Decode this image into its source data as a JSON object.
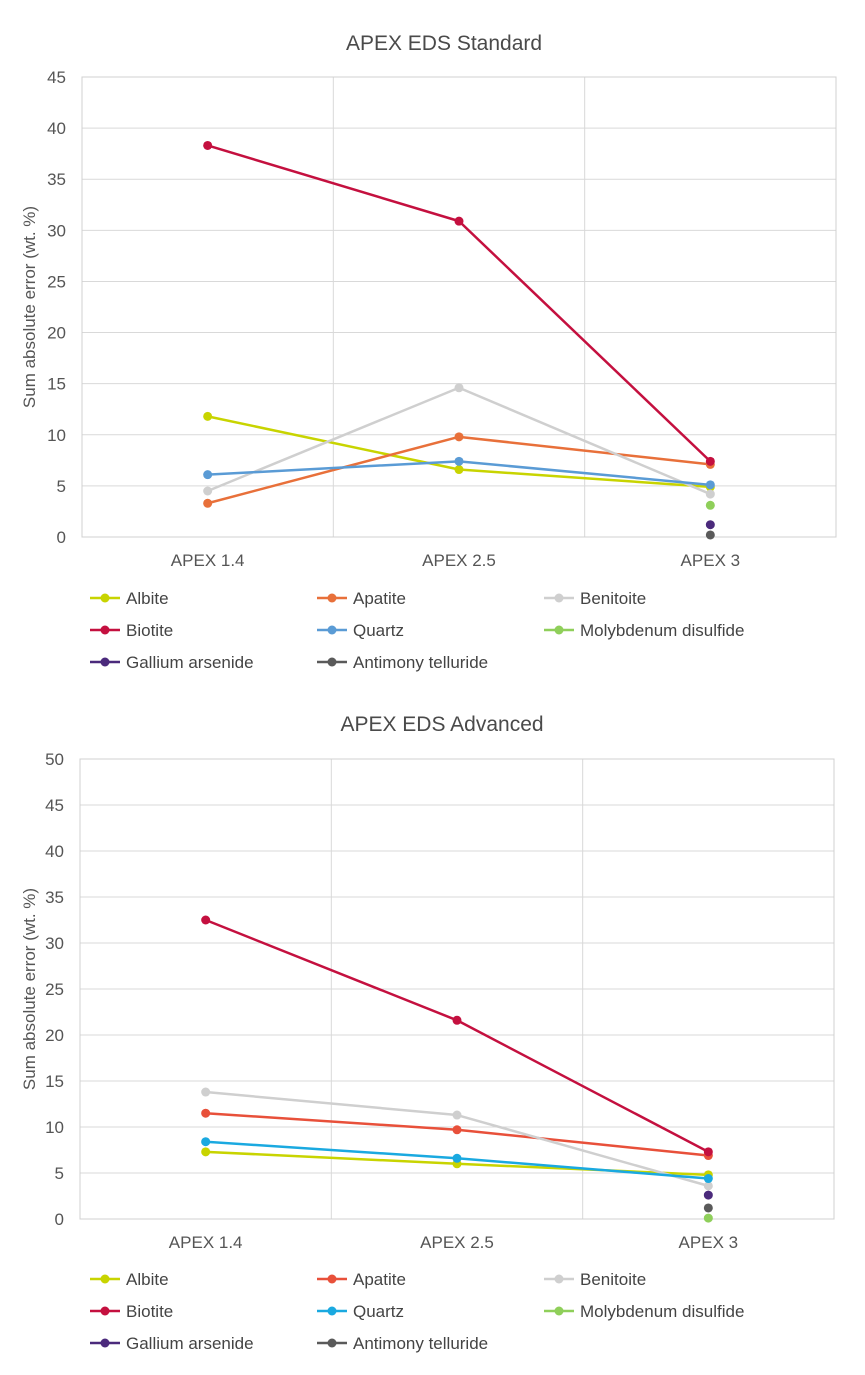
{
  "chart_data": [
    {
      "type": "line",
      "title": "APEX EDS Standard",
      "xlabel": "",
      "ylabel": "Sum absolute error (wt. %)",
      "categories": [
        "APEX 1.4",
        "APEX 2.5",
        "APEX 3"
      ],
      "ylim": [
        0,
        45
      ],
      "yticks": [
        0,
        5,
        10,
        15,
        20,
        25,
        30,
        35,
        40,
        45
      ],
      "grid": true,
      "legend_position": "bottom",
      "series": [
        {
          "name": "Albite",
          "color": "#c8d400",
          "values": [
            11.8,
            6.6,
            4.9
          ]
        },
        {
          "name": "Apatite",
          "color": "#e8703a",
          "values": [
            3.3,
            9.8,
            7.1
          ]
        },
        {
          "name": "Benitoite",
          "color": "#cfcfcf",
          "values": [
            4.5,
            14.6,
            4.2
          ]
        },
        {
          "name": "Biotite",
          "color": "#c4103f",
          "values": [
            38.3,
            30.9,
            7.4
          ]
        },
        {
          "name": "Quartz",
          "color": "#5a9bd5",
          "values": [
            6.1,
            7.4,
            5.1
          ]
        },
        {
          "name": "Molybdenum disulfide",
          "color": "#8fcf5a",
          "values": [
            null,
            null,
            3.1
          ]
        },
        {
          "name": "Gallium arsenide",
          "color": "#4b2a7c",
          "values": [
            null,
            null,
            1.2
          ]
        },
        {
          "name": "Antimony telluride",
          "color": "#5a5a5a",
          "values": [
            null,
            null,
            0.2
          ]
        }
      ]
    },
    {
      "type": "line",
      "title": "APEX EDS Advanced",
      "xlabel": "",
      "ylabel": "Sum absolute error (wt. %)",
      "categories": [
        "APEX 1.4",
        "APEX 2.5",
        "APEX 3"
      ],
      "ylim": [
        0,
        50
      ],
      "yticks": [
        0,
        5,
        10,
        15,
        20,
        25,
        30,
        35,
        40,
        45,
        50
      ],
      "grid": true,
      "legend_position": "bottom",
      "series": [
        {
          "name": "Albite",
          "color": "#c8d400",
          "values": [
            7.3,
            6.0,
            4.8
          ]
        },
        {
          "name": "Apatite",
          "color": "#e8503a",
          "values": [
            11.5,
            9.7,
            6.9
          ]
        },
        {
          "name": "Benitoite",
          "color": "#cfcfcf",
          "values": [
            13.8,
            11.3,
            3.6
          ]
        },
        {
          "name": "Biotite",
          "color": "#c4103f",
          "values": [
            32.5,
            21.6,
            7.3
          ]
        },
        {
          "name": "Quartz",
          "color": "#1aa9e0",
          "values": [
            8.4,
            6.6,
            4.4
          ]
        },
        {
          "name": "Molybdenum disulfide",
          "color": "#8fcf5a",
          "values": [
            null,
            null,
            0.1
          ]
        },
        {
          "name": "Gallium arsenide",
          "color": "#4b2a7c",
          "values": [
            null,
            null,
            2.6
          ]
        },
        {
          "name": "Antimony telluride",
          "color": "#5a5a5a",
          "values": [
            null,
            null,
            1.2
          ]
        }
      ]
    }
  ]
}
